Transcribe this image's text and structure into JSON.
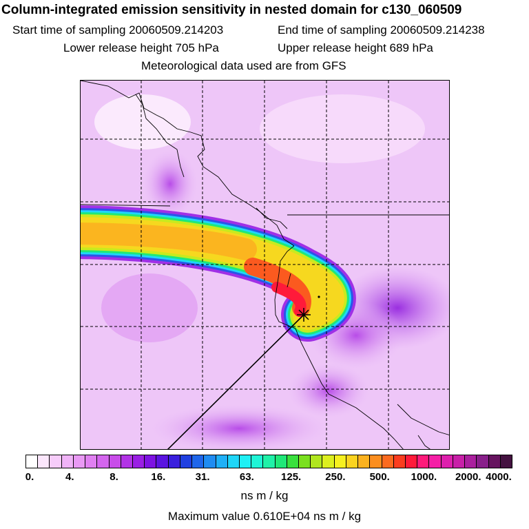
{
  "header": {
    "title": "Column-integrated emission sensitivity in nested domain for c130_060509",
    "start_label": "Start time of sampling 20060509.214203",
    "end_label": "End time of sampling 20060509.214238",
    "lower_label": "Lower release height  705 hPa",
    "upper_label": "Upper release height  689 hPa",
    "met_label": "Meteorological data used are from GFS"
  },
  "colorbar": {
    "colors": [
      "#ffffff",
      "#fbe6fc",
      "#f6ccfa",
      "#f0b3f7",
      "#e999f4",
      "#e080f1",
      "#d466ee",
      "#c84de9",
      "#b233e6",
      "#9a1fe4",
      "#7d12e2",
      "#5a14e0",
      "#3a1fdd",
      "#2040e0",
      "#1f66ea",
      "#1f8cf2",
      "#1fb0f7",
      "#1fd6f8",
      "#1ff0f4",
      "#1ff4d6",
      "#1ff1a8",
      "#1fe878",
      "#39e03e",
      "#7ae01f",
      "#b0e61f",
      "#dcef1f",
      "#f6f01f",
      "#fbd31f",
      "#fbb21f",
      "#fb8e1f",
      "#fb6a1f",
      "#fb3d1f",
      "#ff1a3a",
      "#ff1a7a",
      "#f51fa6",
      "#de1fad",
      "#c81fa8",
      "#aa1f9e",
      "#881f8a",
      "#66145f",
      "#441240"
    ],
    "tick_labels": [
      "0.",
      "4.",
      "8.",
      "16.",
      "31.",
      "63.",
      "125.",
      "250.",
      "500.",
      "1000.",
      "2000.",
      "4000."
    ],
    "units": "ns m / kg",
    "max_label": "Maximum value  0.610E+04 ns m / kg"
  }
}
